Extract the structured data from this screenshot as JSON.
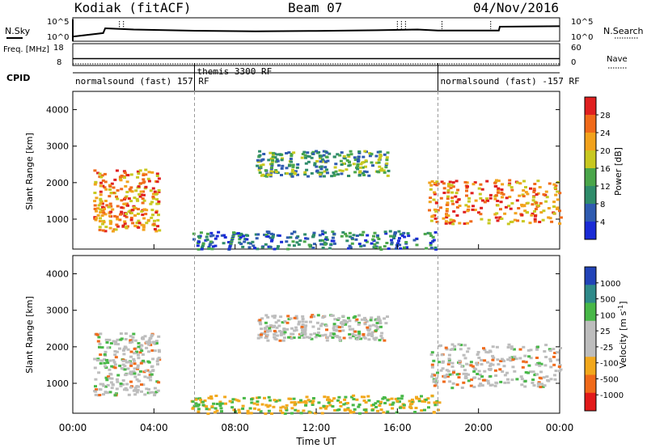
{
  "header": {
    "station": "Kodiak (fitACF)",
    "beam": "Beam 07",
    "date": "04/Nov/2016"
  },
  "chart_data": [
    {
      "type": "line",
      "panel": "noise",
      "left_label": "N.Sky",
      "right_label": "N.Search",
      "yticks_left": [
        "10^5",
        "10^0"
      ],
      "yticks_right": [
        "10^5",
        "10^0"
      ],
      "x": [
        0,
        1.5,
        1.6,
        3.0,
        6.0,
        9.0,
        12.0,
        15.0,
        17.0,
        18.0,
        20.0,
        21.0,
        21.05,
        24.0
      ],
      "values": [
        0.2,
        0.35,
        0.55,
        0.5,
        0.45,
        0.42,
        0.44,
        0.47,
        0.5,
        0.46,
        0.46,
        0.46,
        0.62,
        0.64
      ],
      "spikes": [
        2.3,
        2.5,
        16.0,
        16.2,
        16.4,
        18.2,
        20.6
      ]
    },
    {
      "type": "line",
      "panel": "frequency",
      "left_label": "Freq. [MHz]",
      "right_label": "Nave",
      "yticks_left": [
        "18",
        "8"
      ],
      "yticks_right": [
        "60",
        "0"
      ],
      "x": [
        0,
        24
      ],
      "values": [
        10.5,
        10.5
      ]
    },
    {
      "type": "table",
      "panel": "cpid",
      "label": "CPID",
      "segments": [
        {
          "start": 0,
          "end": 6,
          "name": "normalsound (fast) 157 RF"
        },
        {
          "start": 6,
          "end": 18,
          "name": "themis 3300 RF"
        },
        {
          "start": 18,
          "end": 24,
          "name": "normalsound (fast) -157 RF"
        }
      ]
    },
    {
      "type": "heatmap",
      "panel": "power",
      "ylabel": "Slant Range [km]",
      "yticks": [
        "1000",
        "2000",
        "3000",
        "4000"
      ],
      "ylim": [
        180,
        4500
      ],
      "xlim": [
        0,
        24
      ],
      "colorbar": {
        "label": "Power [dB]",
        "ticks": [
          "4",
          "8",
          "12",
          "16",
          "20",
          "24",
          "28"
        ],
        "range": [
          0,
          32
        ]
      },
      "echo_regions": [
        {
          "x0": 1.0,
          "x1": 4.2,
          "r0": 700,
          "r1": 2400,
          "level": "high"
        },
        {
          "x0": 9.0,
          "x1": 15.5,
          "r0": 2200,
          "r1": 2900,
          "level": "medium"
        },
        {
          "x0": 17.5,
          "x1": 24.0,
          "r0": 900,
          "r1": 2100,
          "level": "high"
        },
        {
          "x0": 5.8,
          "x1": 18.0,
          "r0": 200,
          "r1": 700,
          "level": "low"
        }
      ]
    },
    {
      "type": "heatmap",
      "panel": "velocity",
      "ylabel": "Slant Range [km]",
      "yticks": [
        "1000",
        "2000",
        "3000",
        "4000"
      ],
      "ylim": [
        180,
        4500
      ],
      "xlim": [
        0,
        24
      ],
      "colorbar": {
        "label": "Velocity [m s^-1]",
        "ticks": [
          "1000",
          "500",
          "100",
          "25",
          "-25",
          "-100",
          "-500",
          "-1000"
        ]
      },
      "x_ticks": [
        "00:00",
        "04:00",
        "08:00",
        "12:00",
        "16:00",
        "20:00",
        "00:00"
      ],
      "xlabel": "Time UT"
    }
  ],
  "colors": {
    "power_scale": [
      "#1a2bd6",
      "#2f5bb0",
      "#2f8c6a",
      "#4aa64a",
      "#c8c820",
      "#f2a21c",
      "#f06a1a",
      "#e02020"
    ],
    "velocity_scale": [
      "#e21a1a",
      "#f06a1a",
      "#f2a81c",
      "#bdbdbd",
      "#bdbdbd",
      "#48b848",
      "#2f8a8a",
      "#2244b8"
    ]
  }
}
